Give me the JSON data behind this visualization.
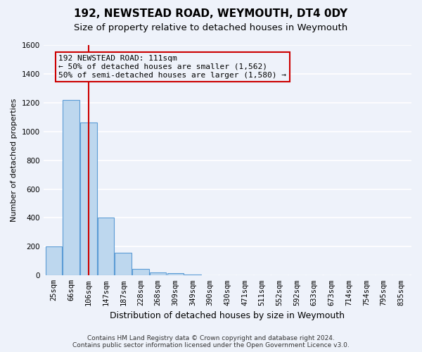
{
  "title": "192, NEWSTEAD ROAD, WEYMOUTH, DT4 0DY",
  "subtitle": "Size of property relative to detached houses in Weymouth",
  "xlabel": "Distribution of detached houses by size in Weymouth",
  "ylabel": "Number of detached properties",
  "footer_line1": "Contains HM Land Registry data © Crown copyright and database right 2024.",
  "footer_line2": "Contains public sector information licensed under the Open Government Licence v3.0.",
  "categories": [
    "25sqm",
    "66sqm",
    "106sqm",
    "147sqm",
    "187sqm",
    "228sqm",
    "268sqm",
    "309sqm",
    "349sqm",
    "390sqm",
    "430sqm",
    "471sqm",
    "511sqm",
    "552sqm",
    "592sqm",
    "633sqm",
    "673sqm",
    "714sqm",
    "754sqm",
    "795sqm",
    "835sqm"
  ],
  "values": [
    200,
    1220,
    1060,
    400,
    160,
    45,
    20,
    15,
    8,
    0,
    0,
    0,
    0,
    0,
    0,
    0,
    0,
    0,
    0,
    0,
    0
  ],
  "bar_color": "#bdd7ee",
  "bar_edge_color": "#5b9bd5",
  "ylim": [
    0,
    1600
  ],
  "yticks": [
    0,
    200,
    400,
    600,
    800,
    1000,
    1200,
    1400,
    1600
  ],
  "vline_x_index": 2,
  "vline_color": "#cc0000",
  "ann_line1": "192 NEWSTEAD ROAD: 111sqm",
  "ann_line2": "← 50% of detached houses are smaller (1,562)",
  "ann_line3": "50% of semi-detached houses are larger (1,580) →",
  "bg_color": "#eef2fa",
  "plot_bg_color": "#eef2fa",
  "grid_color": "#ffffff",
  "title_fontsize": 11,
  "subtitle_fontsize": 9.5,
  "ylabel_fontsize": 8,
  "xlabel_fontsize": 9,
  "tick_fontsize": 7.5,
  "footer_fontsize": 6.5,
  "ann_fontsize": 8
}
